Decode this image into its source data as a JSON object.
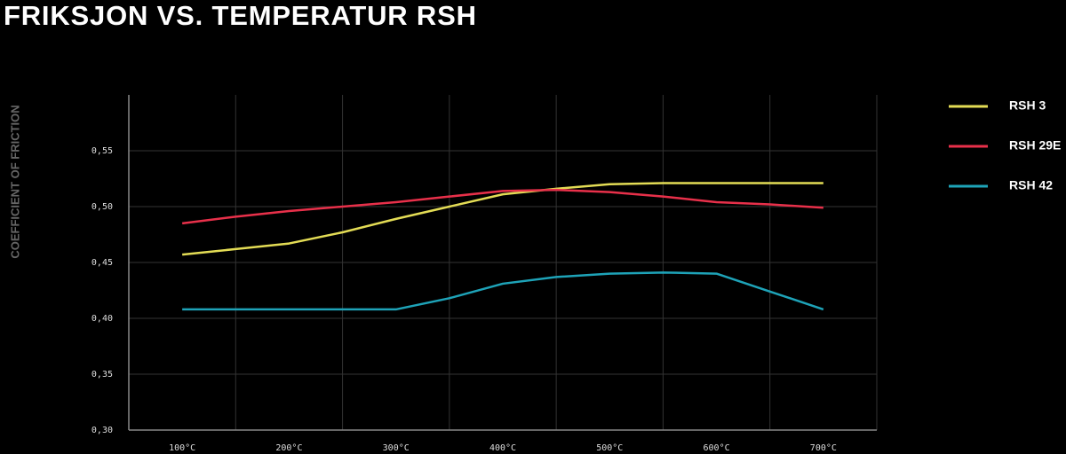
{
  "chart_data": {
    "type": "line",
    "title": "FRIKSJON VS. TEMPERATUR RSH",
    "y_label": "COEFFICIENT OF FRICTION",
    "x": [
      100,
      150,
      200,
      250,
      300,
      350,
      400,
      450,
      500,
      550,
      600,
      650,
      700
    ],
    "xlim": [
      50,
      750
    ],
    "xticks": [
      {
        "value": 100,
        "label": "100°C"
      },
      {
        "value": 200,
        "label": "200°C"
      },
      {
        "value": 300,
        "label": "300°C"
      },
      {
        "value": 400,
        "label": "400°C"
      },
      {
        "value": 500,
        "label": "500°C"
      },
      {
        "value": 600,
        "label": "600°C"
      },
      {
        "value": 700,
        "label": "700°C"
      }
    ],
    "ylim": [
      0.3,
      0.6
    ],
    "yticks": [
      {
        "value": 0.3,
        "label": "0,30"
      },
      {
        "value": 0.35,
        "label": "0,35"
      },
      {
        "value": 0.4,
        "label": "0,40"
      },
      {
        "value": 0.45,
        "label": "0,45"
      },
      {
        "value": 0.5,
        "label": "0,50"
      },
      {
        "value": 0.55,
        "label": "0,55"
      }
    ],
    "grid": true,
    "legend": "right",
    "series": [
      {
        "name": "RSH 3",
        "color": "#e3dc55",
        "values": [
          0.457,
          0.462,
          0.467,
          0.477,
          0.489,
          0.5,
          0.511,
          0.516,
          0.52,
          0.521,
          0.521,
          0.521,
          0.521
        ]
      },
      {
        "name": "RSH 29E",
        "color": "#e8304a",
        "values": [
          0.485,
          0.491,
          0.496,
          0.5,
          0.504,
          0.509,
          0.514,
          0.515,
          0.513,
          0.509,
          0.504,
          0.502,
          0.499
        ]
      },
      {
        "name": "RSH 42",
        "color": "#1ea3b8",
        "values": [
          0.408,
          0.408,
          0.408,
          0.408,
          0.408,
          0.418,
          0.431,
          0.437,
          0.44,
          0.441,
          0.44,
          0.424,
          0.408
        ]
      }
    ]
  }
}
